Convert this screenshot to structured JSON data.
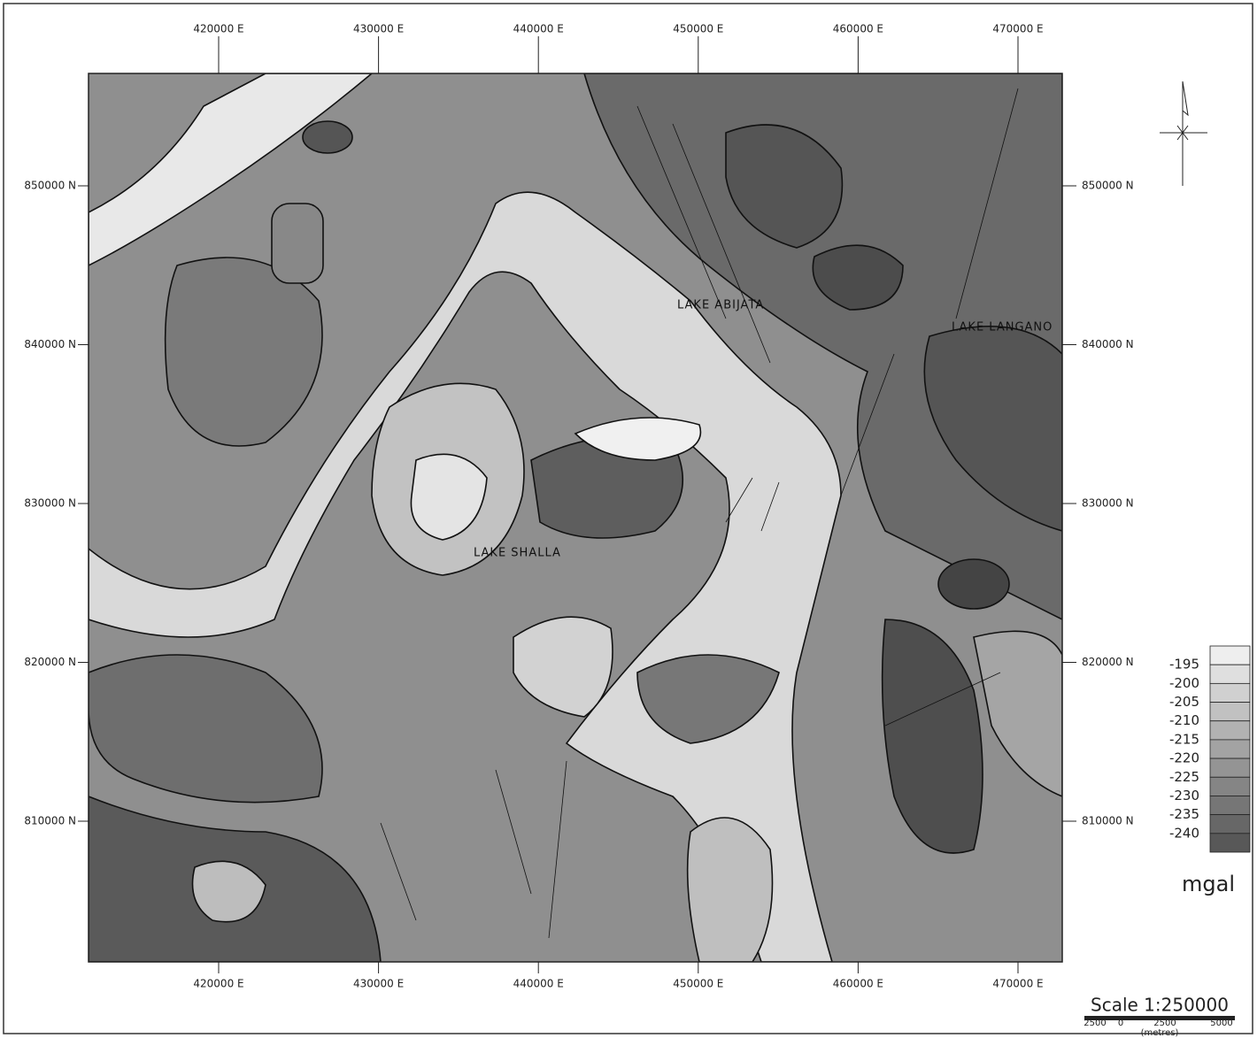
{
  "x_ticks": [
    "420000 E",
    "430000 E",
    "440000 E",
    "450000 E",
    "460000 E",
    "470000 E"
  ],
  "y_ticks": [
    "850000 N",
    "840000 N",
    "830000 N",
    "820000 N",
    "810000 N"
  ],
  "lakes": [
    "LAKE ABIJATA",
    "LAKE SHALLA",
    "LAKE LANGANO"
  ],
  "legend": {
    "values": [
      -195,
      -200,
      -205,
      -210,
      -215,
      -220,
      -225,
      -230,
      -235,
      -240
    ],
    "unit": "mgal"
  },
  "scale": {
    "title": "Scale 1:250000",
    "ticks": [
      "2500",
      "0",
      "2500",
      "5000"
    ],
    "unit": "(metres)"
  }
}
